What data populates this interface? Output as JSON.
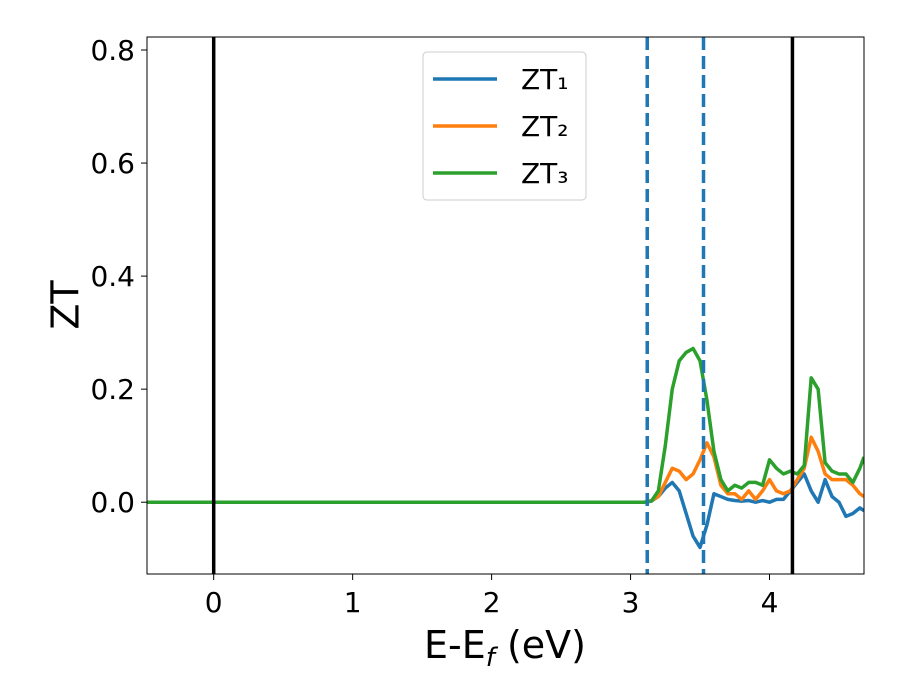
{
  "chart_data": {
    "type": "line",
    "xlabel": [
      "E-E",
      "f",
      " (eV)"
    ],
    "ylabel": "ZT",
    "x": [
      -0.48,
      3.1,
      3.15,
      3.2,
      3.25,
      3.3,
      3.35,
      3.4,
      3.45,
      3.5,
      3.55,
      3.6,
      3.65,
      3.7,
      3.75,
      3.8,
      3.85,
      3.9,
      3.95,
      4.0,
      4.05,
      4.1,
      4.15,
      4.2,
      4.25,
      4.3,
      4.35,
      4.4,
      4.45,
      4.5,
      4.55,
      4.6,
      4.65,
      4.68
    ],
    "series": [
      {
        "name": "ZT₁",
        "color": "#1f77b4",
        "values": [
          0,
          0,
          0.002,
          0.01,
          0.025,
          0.035,
          0.02,
          -0.02,
          -0.06,
          -0.08,
          -0.04,
          0.015,
          0.01,
          0.005,
          0.003,
          0.002,
          0.003,
          0.0,
          0.003,
          0.0,
          0.005,
          0.005,
          0.02,
          0.035,
          0.05,
          0.02,
          0.0,
          0.04,
          0.01,
          0.0,
          -0.025,
          -0.02,
          -0.01,
          -0.015
        ]
      },
      {
        "name": "ZT₂",
        "color": "#ff7f0e",
        "values": [
          0,
          0,
          0.003,
          0.01,
          0.035,
          0.06,
          0.055,
          0.04,
          0.05,
          0.075,
          0.105,
          0.08,
          0.03,
          0.015,
          0.015,
          0.005,
          0.02,
          0.005,
          0.02,
          0.04,
          0.02,
          0.015,
          0.02,
          0.04,
          0.06,
          0.115,
          0.09,
          0.05,
          0.04,
          0.04,
          0.04,
          0.03,
          0.015,
          0.01
        ]
      },
      {
        "name": "ZT₃",
        "color": "#2ca02c",
        "values": [
          0,
          0,
          0.002,
          0.02,
          0.1,
          0.2,
          0.25,
          0.265,
          0.272,
          0.25,
          0.18,
          0.09,
          0.04,
          0.02,
          0.03,
          0.025,
          0.035,
          0.035,
          0.03,
          0.075,
          0.06,
          0.05,
          0.055,
          0.05,
          0.065,
          0.22,
          0.2,
          0.07,
          0.055,
          0.05,
          0.05,
          0.035,
          0.06,
          0.08
        ]
      }
    ],
    "vlines": [
      {
        "x": 0,
        "color": "#000000",
        "dashed": false
      },
      {
        "x": 4.165,
        "color": "#000000",
        "dashed": false
      },
      {
        "x": 3.12,
        "color": "#1f77b4",
        "dashed": true
      },
      {
        "x": 3.525,
        "color": "#1f77b4",
        "dashed": true
      }
    ],
    "xlim": [
      -0.48,
      4.68
    ],
    "ylim": [
      -0.127,
      0.823
    ],
    "xticks": [
      0,
      1,
      2,
      3,
      4
    ],
    "yticks": [
      {
        "value": 0,
        "label": "0.0"
      },
      0.2,
      0.4,
      0.6,
      0.8
    ],
    "legend": "upper center",
    "grid": false
  }
}
